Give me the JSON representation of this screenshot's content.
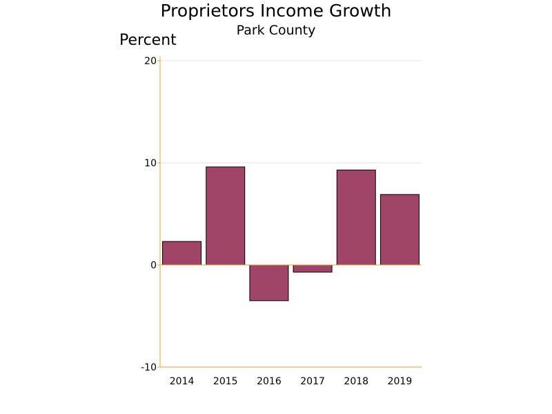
{
  "chart_data": {
    "type": "bar",
    "title": "Proprietors Income Growth",
    "subtitle": "Park County",
    "ylabel": "Percent",
    "xlabel": "",
    "categories": [
      "2014",
      "2015",
      "2016",
      "2017",
      "2018",
      "2019"
    ],
    "values": [
      2.3,
      9.6,
      -3.5,
      -0.7,
      9.3,
      6.9
    ],
    "ylim": [
      -10,
      20
    ],
    "yticks": [
      -10,
      0,
      10,
      20
    ],
    "grid": true,
    "legend": "none",
    "colors": {
      "bar_fill": "#a04468",
      "bar_stroke": "#000000",
      "axis": "#e8a33a",
      "grid": "#e6e6e6"
    }
  }
}
